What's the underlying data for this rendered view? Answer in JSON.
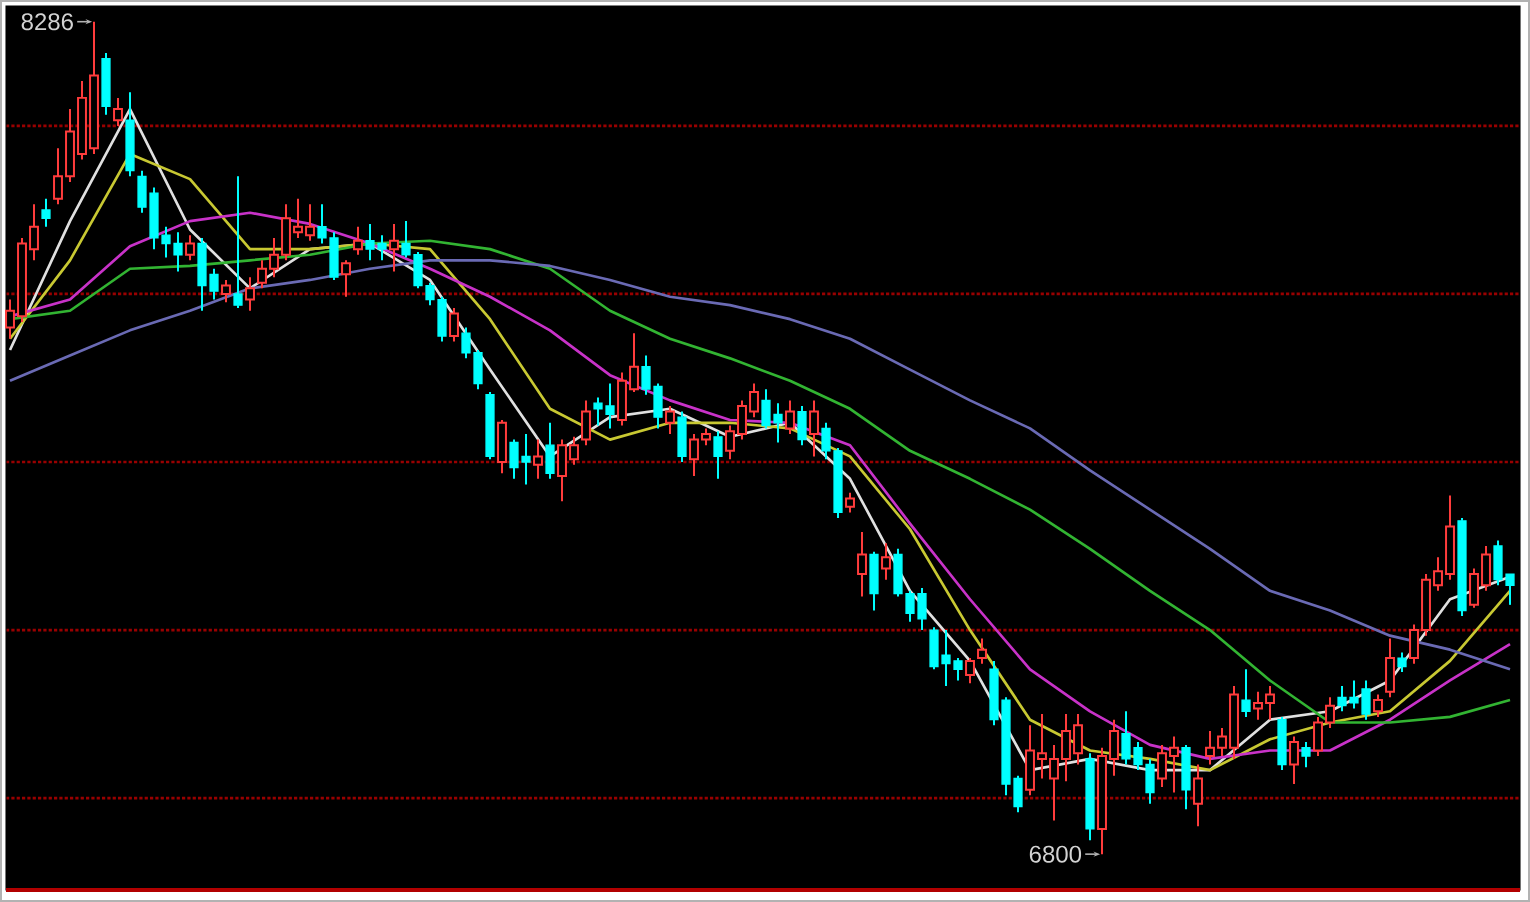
{
  "chart_data": {
    "type": "candlestick",
    "categories": [
      null,
      null,
      null,
      null,
      null,
      null,
      null,
      null,
      null,
      null,
      null,
      null,
      null,
      null,
      null,
      null,
      null,
      null,
      null,
      null,
      null,
      null,
      null,
      null,
      null,
      null,
      null,
      null,
      null,
      null,
      null,
      null,
      null,
      null,
      null,
      null,
      null,
      null,
      null,
      null,
      null,
      null,
      null,
      null,
      null,
      null,
      null,
      null,
      null,
      null,
      null,
      null,
      null,
      null,
      null,
      null,
      null,
      null,
      null,
      null,
      null,
      null,
      null,
      null,
      null,
      null,
      null,
      null,
      null,
      null,
      null,
      null,
      null,
      null,
      null,
      null,
      null,
      null,
      null,
      null,
      null,
      null,
      null,
      null,
      null,
      null,
      null,
      null,
      null,
      null,
      null,
      null,
      null,
      null,
      null,
      null,
      null,
      null,
      null,
      null,
      null,
      null,
      null,
      null,
      null,
      null,
      null,
      null,
      null,
      null,
      null,
      null,
      null,
      null,
      null,
      null,
      null,
      null,
      null,
      null,
      null,
      null,
      null,
      null,
      null,
      null
    ],
    "ohlc": [
      [
        7740,
        7790,
        7720,
        7770
      ],
      [
        7760,
        7900,
        7750,
        7890
      ],
      [
        7880,
        7960,
        7860,
        7920
      ],
      [
        7950,
        7970,
        7920,
        7935
      ],
      [
        7970,
        8060,
        7960,
        8010
      ],
      [
        8010,
        8130,
        8000,
        8090
      ],
      [
        8050,
        8180,
        8040,
        8150
      ],
      [
        8060,
        8286,
        8050,
        8190
      ],
      [
        8220,
        8230,
        8120,
        8135
      ],
      [
        8110,
        8150,
        8100,
        8130
      ],
      [
        8110,
        8160,
        8010,
        8020
      ],
      [
        8010,
        8020,
        7945,
        7955
      ],
      [
        7980,
        7990,
        7880,
        7900
      ],
      [
        7905,
        7920,
        7865,
        7890
      ],
      [
        7890,
        7910,
        7840,
        7870
      ],
      [
        7870,
        7905,
        7860,
        7890
      ],
      [
        7890,
        7900,
        7770,
        7815
      ],
      [
        7835,
        7845,
        7790,
        7805
      ],
      [
        7800,
        7825,
        7785,
        7815
      ],
      [
        7800,
        8010,
        7775,
        7780
      ],
      [
        7790,
        7830,
        7770,
        7810
      ],
      [
        7820,
        7860,
        7810,
        7845
      ],
      [
        7845,
        7900,
        7830,
        7870
      ],
      [
        7870,
        7960,
        7860,
        7935
      ],
      [
        7910,
        7970,
        7900,
        7920
      ],
      [
        7905,
        7960,
        7895,
        7920
      ],
      [
        7920,
        7960,
        7890,
        7900
      ],
      [
        7900,
        7910,
        7825,
        7830
      ],
      [
        7835,
        7860,
        7795,
        7855
      ],
      [
        7880,
        7920,
        7870,
        7895
      ],
      [
        7895,
        7925,
        7860,
        7880
      ],
      [
        7890,
        7905,
        7860,
        7880
      ],
      [
        7880,
        7925,
        7840,
        7895
      ],
      [
        7890,
        7930,
        7865,
        7870
      ],
      [
        7870,
        7875,
        7810,
        7815
      ],
      [
        7815,
        7820,
        7780,
        7790
      ],
      [
        7790,
        7795,
        7715,
        7725
      ],
      [
        7725,
        7775,
        7715,
        7765
      ],
      [
        7730,
        7740,
        7685,
        7695
      ],
      [
        7695,
        7700,
        7630,
        7640
      ],
      [
        7620,
        7625,
        7505,
        7510
      ],
      [
        7500,
        7575,
        7480,
        7570
      ],
      [
        7535,
        7540,
        7470,
        7490
      ],
      [
        7510,
        7550,
        7460,
        7500
      ],
      [
        7495,
        7540,
        7470,
        7510
      ],
      [
        7530,
        7570,
        7470,
        7480
      ],
      [
        7475,
        7540,
        7430,
        7530
      ],
      [
        7505,
        7545,
        7495,
        7530
      ],
      [
        7540,
        7610,
        7530,
        7590
      ],
      [
        7605,
        7615,
        7565,
        7595
      ],
      [
        7600,
        7640,
        7560,
        7585
      ],
      [
        7575,
        7660,
        7565,
        7645
      ],
      [
        7630,
        7730,
        7625,
        7670
      ],
      [
        7670,
        7690,
        7620,
        7630
      ],
      [
        7635,
        7640,
        7560,
        7580
      ],
      [
        7570,
        7600,
        7550,
        7590
      ],
      [
        7580,
        7590,
        7500,
        7510
      ],
      [
        7505,
        7550,
        7475,
        7540
      ],
      [
        7540,
        7560,
        7530,
        7550
      ],
      [
        7545,
        7555,
        7470,
        7510
      ],
      [
        7520,
        7565,
        7505,
        7555
      ],
      [
        7550,
        7610,
        7540,
        7600
      ],
      [
        7590,
        7640,
        7580,
        7625
      ],
      [
        7610,
        7630,
        7560,
        7565
      ],
      [
        7585,
        7605,
        7535,
        7570
      ],
      [
        7560,
        7610,
        7550,
        7590
      ],
      [
        7590,
        7600,
        7530,
        7540
      ],
      [
        7550,
        7610,
        7510,
        7590
      ],
      [
        7560,
        7570,
        7505,
        7520
      ],
      [
        7520,
        7525,
        7400,
        7410
      ],
      [
        7420,
        7445,
        7410,
        7435
      ],
      [
        7300,
        7375,
        7260,
        7335
      ],
      [
        7335,
        7340,
        7235,
        7265
      ],
      [
        7310,
        7355,
        7290,
        7330
      ],
      [
        7335,
        7345,
        7260,
        7265
      ],
      [
        7265,
        7270,
        7215,
        7230
      ],
      [
        7265,
        7275,
        7200,
        7220
      ],
      [
        7200,
        7205,
        7130,
        7135
      ],
      [
        7155,
        7200,
        7100,
        7140
      ],
      [
        7145,
        7150,
        7110,
        7130
      ],
      [
        7120,
        7150,
        7105,
        7145
      ],
      [
        7150,
        7185,
        7140,
        7165
      ],
      [
        7130,
        7145,
        7030,
        7040
      ],
      [
        7075,
        7080,
        6905,
        6925
      ],
      [
        6935,
        6940,
        6875,
        6885
      ],
      [
        6915,
        7030,
        6905,
        6985
      ],
      [
        6970,
        7050,
        6935,
        6980
      ],
      [
        6935,
        6995,
        6860,
        6970
      ],
      [
        6970,
        7050,
        6930,
        7020
      ],
      [
        6980,
        7050,
        6960,
        7030
      ],
      [
        6970,
        6980,
        6825,
        6845
      ],
      [
        6845,
        6990,
        6800,
        6975
      ],
      [
        6970,
        7040,
        6940,
        7020
      ],
      [
        7015,
        7055,
        6960,
        6970
      ],
      [
        6990,
        7000,
        6950,
        6960
      ],
      [
        6960,
        6970,
        6890,
        6910
      ],
      [
        6935,
        6995,
        6920,
        6980
      ],
      [
        6975,
        7010,
        6910,
        6990
      ],
      [
        6990,
        6995,
        6880,
        6915
      ],
      [
        6890,
        6960,
        6850,
        6935
      ],
      [
        6975,
        7020,
        6960,
        6990
      ],
      [
        6990,
        7025,
        6975,
        7010
      ],
      [
        6990,
        7100,
        6970,
        7085
      ],
      [
        7075,
        7130,
        7045,
        7055
      ],
      [
        7060,
        7090,
        7040,
        7070
      ],
      [
        7070,
        7100,
        7040,
        7085
      ],
      [
        7040,
        7045,
        6950,
        6960
      ],
      [
        6960,
        7010,
        6925,
        7000
      ],
      [
        6990,
        7000,
        6955,
        6975
      ],
      [
        6985,
        7045,
        6975,
        7035
      ],
      [
        7035,
        7080,
        7025,
        7065
      ],
      [
        7080,
        7100,
        7055,
        7065
      ],
      [
        7080,
        7110,
        7060,
        7070
      ],
      [
        7095,
        7110,
        7040,
        7050
      ],
      [
        7055,
        7085,
        7045,
        7075
      ],
      [
        7090,
        7185,
        7080,
        7150
      ],
      [
        7150,
        7160,
        7125,
        7135
      ],
      [
        7150,
        7210,
        7140,
        7200
      ],
      [
        7200,
        7300,
        7190,
        7290
      ],
      [
        7280,
        7330,
        7270,
        7305
      ],
      [
        7300,
        7440,
        7290,
        7385
      ],
      [
        7395,
        7400,
        7225,
        7235
      ],
      [
        7245,
        7310,
        7240,
        7300
      ],
      [
        7280,
        7350,
        7270,
        7335
      ],
      [
        7350,
        7360,
        7280,
        7290
      ],
      [
        7300,
        7300,
        7245,
        7280
      ]
    ],
    "series": [
      {
        "type": "line",
        "color": "#e0e0e0",
        "values": [
          7700,
          null,
          null,
          null,
          null,
          7930,
          null,
          null,
          null,
          null,
          8130,
          null,
          null,
          null,
          null,
          7915,
          null,
          null,
          null,
          null,
          7810,
          null,
          null,
          null,
          null,
          7880,
          null,
          null,
          null,
          null,
          7890,
          null,
          null,
          null,
          null,
          7825,
          null,
          null,
          null,
          null,
          7665,
          null,
          null,
          null,
          null,
          7510,
          null,
          null,
          null,
          null,
          7580,
          null,
          null,
          null,
          null,
          7595,
          null,
          null,
          null,
          null,
          7545,
          null,
          null,
          null,
          null,
          7570,
          null,
          null,
          null,
          null,
          7470,
          null,
          null,
          null,
          null,
          7270,
          null,
          null,
          null,
          null,
          7145,
          null,
          null,
          null,
          null,
          6950,
          null,
          null,
          null,
          null,
          6970,
          null,
          null,
          null,
          null,
          6950,
          null,
          null,
          null,
          null,
          6950,
          null,
          null,
          null,
          null,
          7040,
          null,
          null,
          null,
          null,
          7055,
          null,
          null,
          null,
          null,
          7110,
          null,
          null,
          null,
          null,
          7255,
          null,
          null,
          null,
          null,
          7295
        ]
      },
      {
        "type": "line",
        "color": "#c8c832",
        "values": [
          7720,
          null,
          null,
          null,
          null,
          7860,
          null,
          null,
          null,
          null,
          8050,
          null,
          null,
          null,
          null,
          8005,
          null,
          null,
          null,
          null,
          7880,
          null,
          null,
          null,
          null,
          7880,
          null,
          null,
          null,
          null,
          7890,
          null,
          null,
          null,
          null,
          7880,
          null,
          null,
          null,
          null,
          7755,
          null,
          null,
          null,
          null,
          7595,
          null,
          null,
          null,
          null,
          7540,
          null,
          null,
          null,
          null,
          7570,
          null,
          null,
          null,
          null,
          7570,
          null,
          null,
          null,
          null,
          7560,
          null,
          null,
          null,
          null,
          7510,
          null,
          null,
          null,
          null,
          7380,
          null,
          null,
          null,
          null,
          7200,
          null,
          null,
          null,
          null,
          7040,
          null,
          null,
          null,
          null,
          6985,
          null,
          null,
          null,
          null,
          6970,
          null,
          null,
          null,
          null,
          6950,
          null,
          null,
          null,
          null,
          7005,
          null,
          null,
          null,
          null,
          7035,
          null,
          null,
          null,
          null,
          7055,
          null,
          null,
          null,
          null,
          7145,
          null,
          null,
          null,
          null,
          7270
        ]
      },
      {
        "type": "line",
        "color": "#c832c8",
        "values": [
          7760,
          null,
          null,
          null,
          null,
          7790,
          null,
          null,
          null,
          null,
          7885,
          null,
          null,
          null,
          null,
          7930,
          null,
          null,
          null,
          null,
          7945,
          null,
          null,
          null,
          null,
          7925,
          null,
          null,
          null,
          null,
          7890,
          null,
          null,
          null,
          null,
          7845,
          null,
          null,
          null,
          null,
          7795,
          null,
          null,
          null,
          null,
          7735,
          null,
          null,
          null,
          null,
          7655,
          null,
          null,
          null,
          null,
          7610,
          null,
          null,
          null,
          null,
          7575,
          null,
          null,
          null,
          null,
          7570,
          null,
          null,
          null,
          null,
          7530,
          null,
          null,
          null,
          null,
          7390,
          null,
          null,
          null,
          null,
          7255,
          null,
          null,
          null,
          null,
          7130,
          null,
          null,
          null,
          null,
          7055,
          null,
          null,
          null,
          null,
          6995,
          null,
          null,
          null,
          null,
          6970,
          null,
          null,
          null,
          null,
          6985,
          null,
          null,
          null,
          null,
          6985,
          null,
          null,
          null,
          null,
          7040,
          null,
          null,
          null,
          null,
          7110,
          null,
          null,
          null,
          null,
          7175
        ]
      },
      {
        "type": "line",
        "color": "#32b432",
        "values": [
          7755,
          null,
          null,
          null,
          null,
          7770,
          null,
          null,
          null,
          null,
          7845,
          null,
          null,
          null,
          null,
          7850,
          null,
          null,
          null,
          null,
          7860,
          null,
          null,
          null,
          null,
          7870,
          null,
          null,
          null,
          null,
          7890,
          null,
          null,
          null,
          null,
          7895,
          null,
          null,
          null,
          null,
          7880,
          null,
          null,
          null,
          null,
          7845,
          null,
          null,
          null,
          null,
          7770,
          null,
          null,
          null,
          null,
          7720,
          null,
          null,
          null,
          null,
          7685,
          null,
          null,
          null,
          null,
          7645,
          null,
          null,
          null,
          null,
          7595,
          null,
          null,
          null,
          null,
          7520,
          null,
          null,
          null,
          null,
          7470,
          null,
          null,
          null,
          null,
          7415,
          null,
          null,
          null,
          null,
          7345,
          null,
          null,
          null,
          null,
          7270,
          null,
          null,
          null,
          null,
          7200,
          null,
          null,
          null,
          null,
          7110,
          null,
          null,
          null,
          null,
          7035,
          null,
          null,
          null,
          null,
          7035,
          null,
          null,
          null,
          null,
          7045,
          null,
          null,
          null,
          null,
          7075
        ]
      },
      {
        "type": "line",
        "color": "#6a6ab4",
        "values": [
          7645,
          null,
          null,
          null,
          null,
          7690,
          null,
          null,
          null,
          null,
          7735,
          null,
          null,
          null,
          null,
          7770,
          null,
          null,
          null,
          null,
          7810,
          null,
          null,
          null,
          null,
          7825,
          null,
          null,
          null,
          null,
          7845,
          null,
          null,
          null,
          null,
          7860,
          null,
          null,
          null,
          null,
          7860,
          null,
          null,
          null,
          null,
          7850,
          null,
          null,
          null,
          null,
          7825,
          null,
          null,
          null,
          null,
          7795,
          null,
          null,
          null,
          null,
          7780,
          null,
          null,
          null,
          null,
          7755,
          null,
          null,
          null,
          null,
          7720,
          null,
          null,
          null,
          null,
          7665,
          null,
          null,
          null,
          null,
          7610,
          null,
          null,
          null,
          null,
          7560,
          null,
          null,
          null,
          null,
          7485,
          null,
          null,
          null,
          null,
          7415,
          null,
          null,
          null,
          null,
          7345,
          null,
          null,
          null,
          null,
          7270,
          null,
          null,
          null,
          null,
          7235,
          null,
          null,
          null,
          null,
          7190,
          null,
          null,
          null,
          null,
          7165,
          null,
          null,
          null,
          null,
          7130
        ]
      }
    ],
    "ylim": [
      6736,
      8314
    ],
    "yticks": [
      {
        "value": 6900,
        "label": null
      },
      {
        "value": 7200,
        "label": null
      },
      {
        "value": 7500,
        "label": null
      },
      {
        "value": 7800,
        "label": null
      },
      {
        "value": 8100,
        "label": null
      }
    ],
    "grid": "y",
    "annotations": [
      "8286",
      "6800"
    ]
  }
}
